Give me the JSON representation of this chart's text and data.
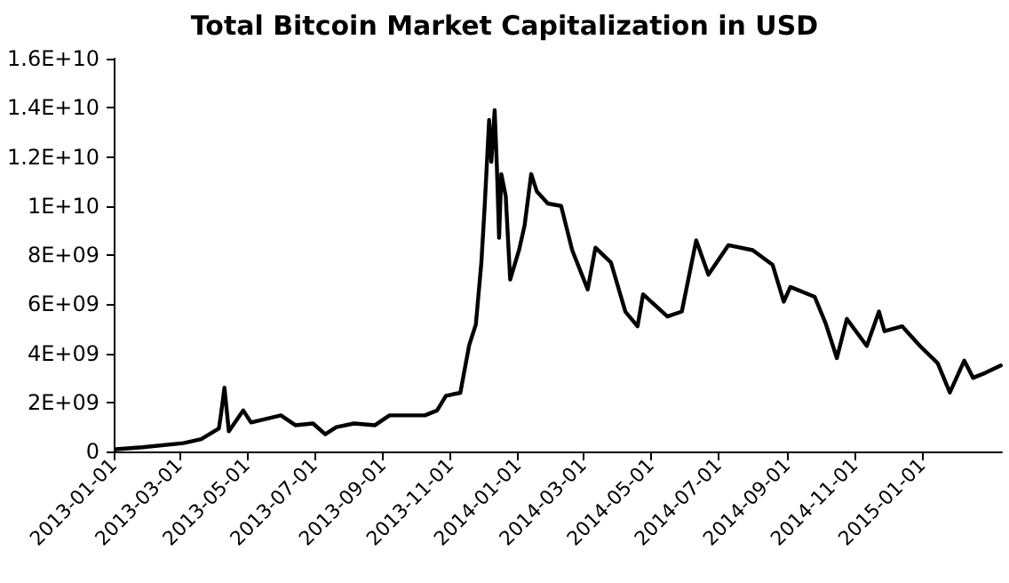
{
  "chart_data": {
    "type": "line",
    "title": "Total Bitcoin Market Capitalization in USD",
    "x": [
      "2013-01-03",
      "2013-01-27",
      "2013-03-05",
      "2013-03-21",
      "2013-04-06",
      "2013-04-08",
      "2013-04-11",
      "2013-04-15",
      "2013-04-28",
      "2013-05-05",
      "2013-06-01",
      "2013-06-14",
      "2013-06-30",
      "2013-07-11",
      "2013-07-21",
      "2013-08-06",
      "2013-08-25",
      "2013-09-07",
      "2013-10-09",
      "2013-10-20",
      "2013-10-28",
      "2013-11-10",
      "2013-11-18",
      "2013-11-24",
      "2013-11-29",
      "2013-12-02",
      "2013-12-06",
      "2013-12-08",
      "2013-12-11",
      "2013-12-13",
      "2013-12-15",
      "2013-12-17",
      "2013-12-21",
      "2013-12-25",
      "2014-01-02",
      "2014-01-07",
      "2014-01-13",
      "2014-01-18",
      "2014-01-28",
      "2014-02-09",
      "2014-02-19",
      "2014-03-05",
      "2014-03-12",
      "2014-03-26",
      "2014-04-08",
      "2014-04-19",
      "2014-04-24",
      "2014-05-16",
      "2014-05-29",
      "2014-06-11",
      "2014-06-22",
      "2014-07-10",
      "2014-08-01",
      "2014-08-19",
      "2014-08-29",
      "2014-09-04",
      "2014-09-26",
      "2014-10-06",
      "2014-10-16",
      "2014-10-25",
      "2014-11-12",
      "2014-11-23",
      "2014-11-28",
      "2014-12-14",
      "2014-12-30",
      "2015-01-15",
      "2015-01-26",
      "2015-02-08",
      "2015-02-16",
      "2015-02-27",
      "2015-03-13"
    ],
    "series": [
      {
        "color": "#000000",
        "values": [
          90000000,
          170000000,
          340000000,
          500000000,
          940000000,
          1550000000,
          2600000000,
          820000000,
          1670000000,
          1180000000,
          1470000000,
          1070000000,
          1140000000,
          700000000,
          990000000,
          1140000000,
          1070000000,
          1470000000,
          1470000000,
          1670000000,
          2270000000,
          2390000000,
          4330000000,
          5170000000,
          7700000000,
          10000000000,
          13500000000,
          11800000000,
          13900000000,
          11600000000,
          8700000000,
          11300000000,
          10400000000,
          7000000000,
          8200000000,
          9200000000,
          11300000000,
          10600000000,
          10100000000,
          10000000000,
          8200000000,
          6600000000,
          8300000000,
          7700000000,
          5700000000,
          5100000000,
          6400000000,
          5500000000,
          5700000000,
          8600000000,
          7200000000,
          8400000000,
          8200000000,
          7600000000,
          6100000000,
          6700000000,
          6300000000,
          5200000000,
          3800000000,
          5400000000,
          4300000000,
          5700000000,
          4900000000,
          5100000000,
          4300000000,
          3600000000,
          2400000000,
          3700000000,
          3000000000,
          3200000000,
          3500000000
        ]
      }
    ],
    "xlim": [
      "2013-01-01",
      "2015-03-14"
    ],
    "xticks": [
      "2013-01-01",
      "2013-03-01",
      "2013-05-01",
      "2013-07-01",
      "2013-09-01",
      "2013-11-01",
      "2014-01-01",
      "2014-03-01",
      "2014-05-01",
      "2014-07-01",
      "2014-09-01",
      "2014-11-01",
      "2015-01-01"
    ],
    "ylim": [
      0,
      16000000000
    ],
    "yticks": [
      0,
      {
        "value": 2000000000,
        "label": "2E+09"
      },
      {
        "value": 4000000000,
        "label": "4E+09"
      },
      {
        "value": 6000000000,
        "label": "6E+09"
      },
      {
        "value": 8000000000,
        "label": "8E+09"
      },
      {
        "value": 10000000000,
        "label": "1E+10"
      },
      {
        "value": 12000000000,
        "label": "1.2E+10"
      },
      {
        "value": 14000000000,
        "label": "1.4E+10"
      },
      {
        "value": 16000000000,
        "label": "1.6E+10"
      }
    ],
    "grid": false,
    "marker": "none",
    "line_style": "solid"
  }
}
